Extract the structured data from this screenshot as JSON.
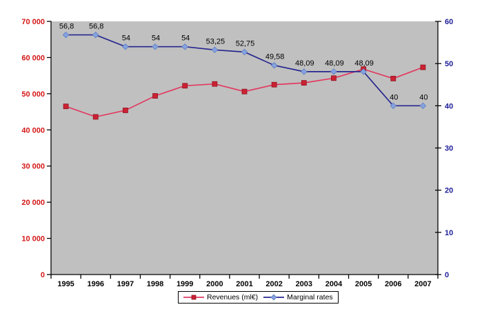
{
  "chart_data": {
    "type": "line",
    "title": "",
    "xlabel": "",
    "ylabel_left": "",
    "ylabel_right": "",
    "grid": false,
    "plot_bg": "#c0c0c0",
    "axis_line_color": "#000000",
    "legend_position": "bottom",
    "categories": [
      "1995",
      "1996",
      "1997",
      "1998",
      "1999",
      "2000",
      "2001",
      "2002",
      "2003",
      "2004",
      "2005",
      "2006",
      "2007"
    ],
    "series": [
      {
        "name": "Revenues (ml€)",
        "axis": "left",
        "marker": "square",
        "line_color": "#e23a60",
        "marker_color": "#cc2233",
        "values": [
          46500,
          43600,
          45400,
          49400,
          52200,
          52700,
          50600,
          52500,
          53000,
          54300,
          56800,
          54200,
          57300
        ],
        "data_labels": []
      },
      {
        "name": "Marginal rates",
        "axis": "right",
        "marker": "diamond",
        "line_color": "#26268f",
        "marker_color": "#85a3e0",
        "values": [
          56.8,
          56.8,
          54,
          54,
          54,
          53.25,
          52.75,
          49.58,
          48.09,
          48.09,
          48.09,
          40,
          40
        ],
        "data_labels": [
          "56,8",
          "56,8",
          "54",
          "54",
          "54",
          "53,25",
          "52,75",
          "49,58",
          "48,09",
          "48,09",
          "48,09",
          "40",
          "40"
        ]
      }
    ],
    "left_axis": {
      "min": 0,
      "max": 70000,
      "step": 10000,
      "labels": [
        "0",
        "10 000",
        "20 000",
        "30 000",
        "40 000",
        "50 000",
        "60 000",
        "70 000"
      ],
      "label_color": "#d41616"
    },
    "right_axis": {
      "min": 0,
      "max": 60,
      "step": 10,
      "labels": [
        "0",
        "10",
        "20",
        "30",
        "40",
        "50",
        "60"
      ],
      "label_color": "#1c1c99"
    },
    "x_axis": {
      "label_color": "#000000"
    },
    "data_label_color": "#000000"
  },
  "legend": {
    "items": [
      {
        "label": "Revenues (ml€)"
      },
      {
        "label": "Marginal rates"
      }
    ]
  }
}
